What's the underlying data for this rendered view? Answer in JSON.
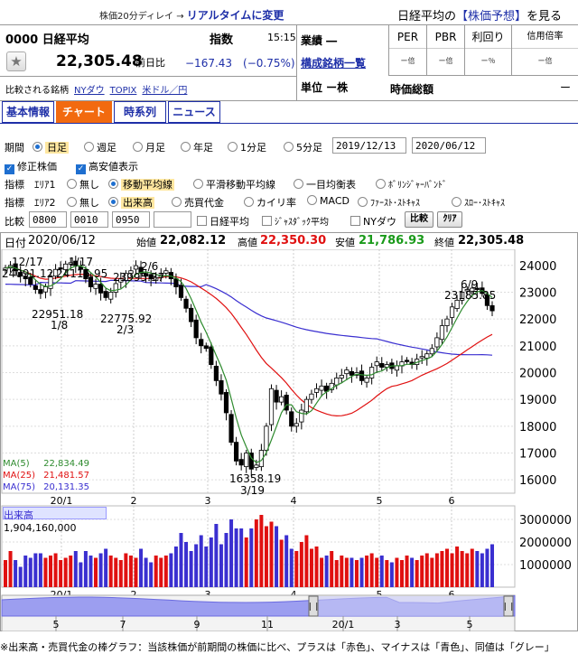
{
  "header": {
    "delay_note": "株価20分ディレイ →",
    "realtime_link": "リアルタイムに変更",
    "yoso_pre": "日経平均の",
    "yoso_link": "【株価予想】",
    "yoso_post": "を見る",
    "code_name": "0000 日経平均",
    "shisu_label": "指数",
    "time": "15:15",
    "industry_label": "業績 ―",
    "kosei_link": "構成銘柄一覧",
    "unit_label": "単位 ー株",
    "price": "22,305.48",
    "prev_label": "前日比",
    "change": "−167.43　(−0.75%)",
    "compare_label": "比較される銘柄",
    "compare_links": [
      "NYダウ",
      "TOPIX",
      "米ドル／円"
    ],
    "metrics": [
      {
        "label": "PER",
        "value": "ー倍"
      },
      {
        "label": "PBR",
        "value": "ー倍"
      },
      {
        "label": "利回り",
        "value": "ー％"
      },
      {
        "label": "信用倍率",
        "value": "ー倍"
      }
    ],
    "market_cap_label": "時価総額",
    "market_cap_value": "ー"
  },
  "tabs": [
    "基本情報",
    "チャート",
    "時系列",
    "ニュース"
  ],
  "controls": {
    "period_label": "期間",
    "period_options": [
      "日足",
      "週足",
      "月足",
      "年足",
      "1分足",
      "5分足"
    ],
    "date_from": "2019/12/13",
    "date_to": "2020/06/12",
    "check1": "修正株価",
    "check2": "高安値表示",
    "ind1_label": "指標　ｴﾘｱ1",
    "ind1_options": [
      "無し",
      "移動平均線",
      "平滑移動平均線",
      "一目均衡表",
      "ﾎﾞﾘﾝｼﾞｬｰﾊﾞﾝﾄﾞ"
    ],
    "ind2_label": "指標　ｴﾘｱ2",
    "ind2_options": [
      "無し",
      "出来高",
      "売買代金",
      "カイリ率",
      "MACD",
      "ﾌｧｰｽﾄ･ｽﾄｷｬｽ",
      "ｽﾛｰ･ｽﾄｷｬｽ"
    ],
    "cmp_label": "比較",
    "cmp_inputs": [
      "0800",
      "0010",
      "0950",
      ""
    ],
    "cmp_checks": [
      "日経平均",
      "ｼﾞｬｽﾀﾞｯｸ平均",
      "NYダウ"
    ],
    "cmp_btn": "比較",
    "clear_btn": "ｸﾘｱ"
  },
  "info": {
    "date_label": "日付",
    "date": "2020/06/12",
    "open_label": "始値",
    "open": "22,082.12",
    "high_label": "高値",
    "high": "22,350.30",
    "low_label": "安値",
    "low": "21,786.93",
    "close_label": "終値",
    "close": "22,305.48"
  },
  "ma_legend": [
    {
      "label": "MA(5)",
      "value": "22,834.49",
      "color": "#2e8b2e"
    },
    {
      "label": "MA(25)",
      "value": "21,481.57",
      "color": "#e01010"
    },
    {
      "label": "MA(75)",
      "value": "20,131.35",
      "color": "#3a2fd0"
    }
  ],
  "annotations": {
    "a1217": "12/17",
    "v1217": "24091.12",
    "a117": "1/17",
    "v117": "24115.95",
    "a26": "2/6",
    "v26": "23995.37",
    "v18": "22951.18",
    "a18": "1/8",
    "v23": "22775.92",
    "a23": "2/3",
    "v319": "16358.19",
    "a319": "3/19",
    "a69": "6/9",
    "v69": "23185.85"
  },
  "volume_label": "出来高",
  "volume_value": "1,904,160,000",
  "footnote": "※出来高・売買代金の棒グラフ：当該株価が前期間の株価に比べ、プラスは「赤色」、マイナスは「青色」、同値は「グレー」",
  "chart_data": {
    "type": "line",
    "title": "",
    "price_axis": [
      24000,
      23000,
      22000,
      21000,
      20000,
      19000,
      18000,
      17000,
      16000
    ],
    "x_ticks": [
      "20/1",
      "2",
      "3",
      "4",
      "5",
      "6"
    ],
    "volume_axis": [
      "3000000",
      "2000000",
      "1000000"
    ],
    "nav_ticks": [
      "5",
      "7",
      "9",
      "11",
      "20/1",
      "3",
      "5"
    ],
    "close_approx": [
      23900,
      24000,
      23800,
      23600,
      23500,
      23300,
      23100,
      22950,
      23200,
      23600,
      23850,
      23900,
      24050,
      24100,
      24000,
      23850,
      23500,
      23200,
      23300,
      22970,
      22800,
      23000,
      23320,
      23500,
      23700,
      23800,
      23990,
      23700,
      23600,
      23500,
      23550,
      23650,
      23800,
      23500,
      23200,
      22800,
      22400,
      21900,
      21300,
      21000,
      20900,
      20300,
      19700,
      19200,
      18500,
      17400,
      16700,
      16550,
      17000,
      16400,
      16550,
      17100,
      18000,
      19400,
      18900,
      19100,
      18600,
      18000,
      18100,
      18600,
      19000,
      19200,
      19400,
      19500,
      19300,
      19600,
      19800,
      19900,
      20100,
      19900,
      20000,
      19700,
      19800,
      20200,
      20400,
      20200,
      20300,
      20150,
      20250,
      20400,
      20450,
      20300,
      20500,
      20600,
      20700,
      20900,
      21300,
      21750,
      22000,
      22450,
      22700,
      23000,
      23100,
      23150,
      23100,
      22950,
      22500,
      22305
    ],
    "volumes_approx": [
      1.2,
      1.6,
      1.2,
      0.9,
      1.4,
      1.3,
      1.5,
      1.5,
      1.3,
      1.4,
      1.5,
      1.2,
      1.3,
      1.4,
      1.6,
      1.1,
      1.6,
      1.4,
      1.3,
      1.5,
      1.7,
      1.4,
      1.3,
      1.2,
      1.5,
      1.4,
      1.3,
      1.7,
      1.3,
      1.1,
      1.4,
      1.3,
      1.4,
      1.5,
      1.8,
      2.4,
      2.0,
      1.6,
      1.9,
      2.3,
      1.8,
      2.2,
      2.8,
      1.9,
      2.4,
      3.0,
      2.6,
      2.6,
      2.2,
      2.6,
      3.0,
      3.2,
      2.7,
      2.9,
      2.7,
      2.1,
      2.3,
      1.7,
      1.6,
      2.0,
      2.3,
      1.7,
      1.8,
      1.3,
      1.4,
      1.6,
      1.2,
      1.4,
      1.3,
      1.3,
      1.2,
      1.3,
      1.4,
      1.5,
      1.3,
      1.4,
      1.2,
      1.1,
      1.3,
      1.2,
      1.4,
      1.3,
      1.2,
      1.4,
      1.5,
      1.3,
      1.5,
      1.6,
      1.7,
      1.5,
      1.8,
      1.6,
      1.5,
      1.7,
      1.6,
      1.5,
      1.7,
      1.9
    ]
  }
}
